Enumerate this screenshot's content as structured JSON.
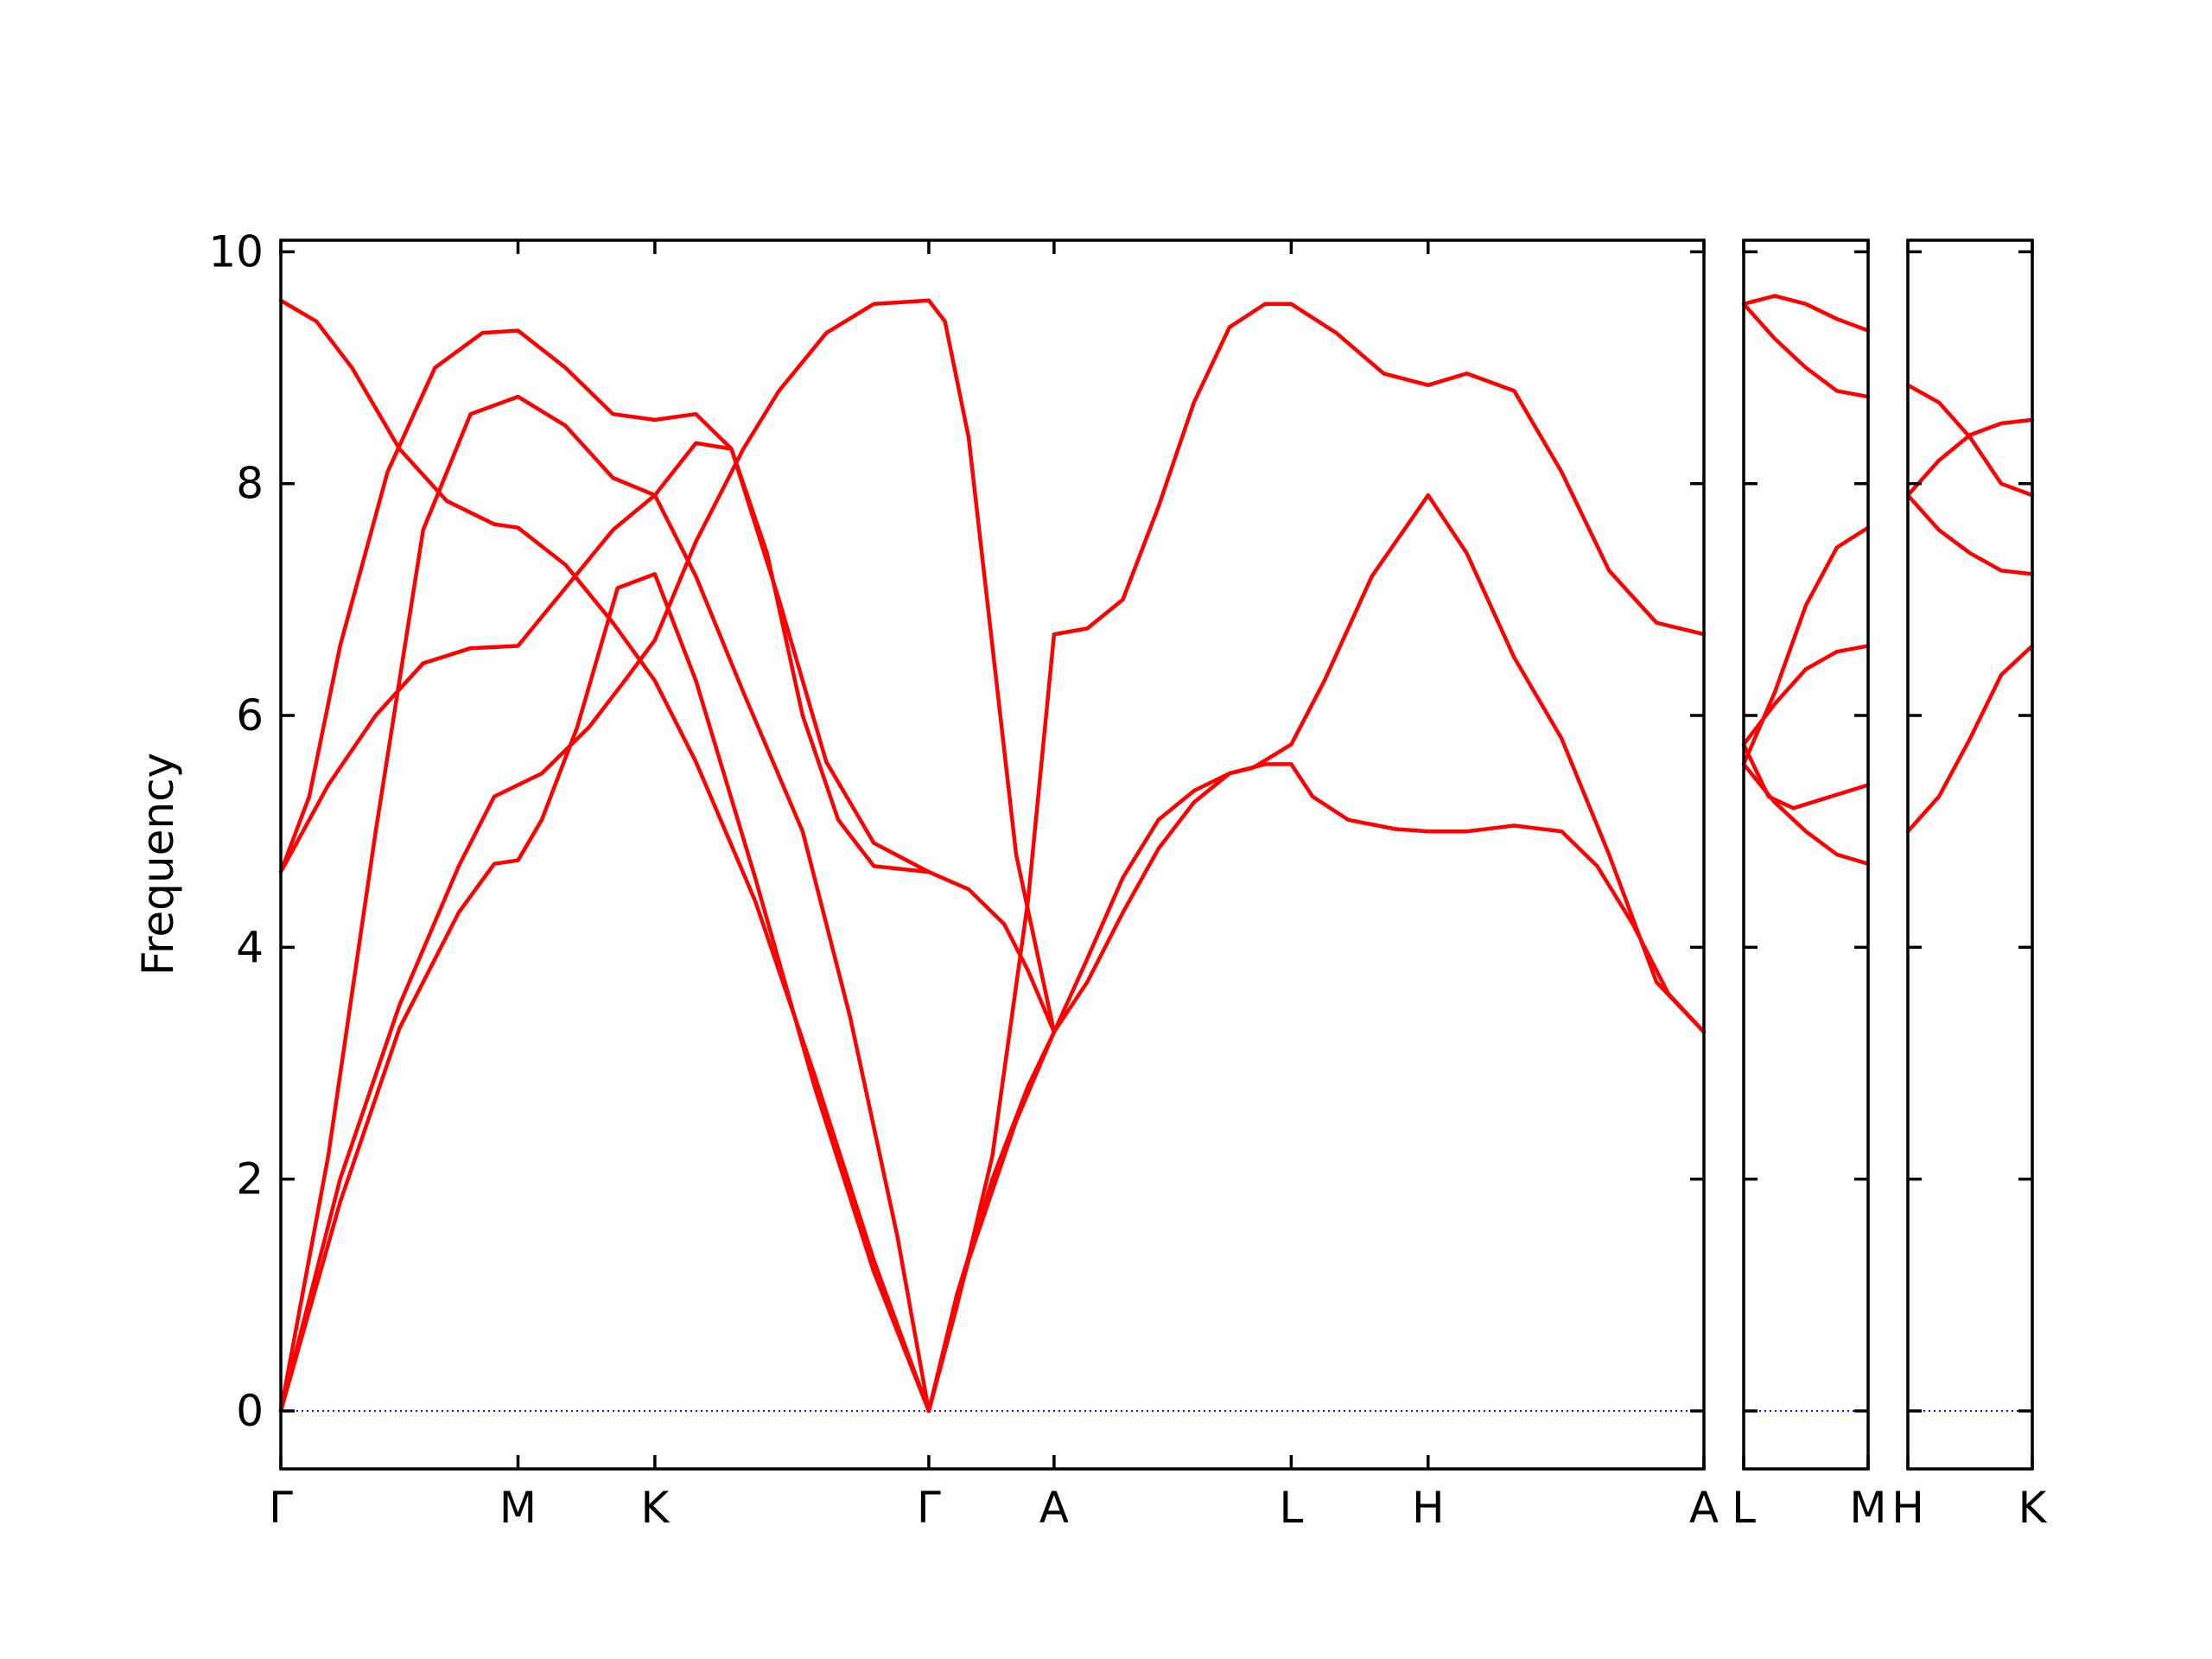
{
  "chart_data": {
    "type": "line",
    "title": "",
    "xlabel": "",
    "ylabel": "Frequency",
    "ylim": [
      -0.5,
      10.1
    ],
    "yticks": [
      0,
      2,
      4,
      6,
      8,
      10
    ],
    "grid": false,
    "colors": {
      "bands": "#ff0000",
      "zero_line": "#0000ff",
      "frame": "#000000"
    },
    "panels": [
      {
        "labels": [
          "Γ",
          "M",
          "K",
          "Γ",
          "A",
          "L",
          "H",
          "A"
        ],
        "x": [
          0,
          1.0,
          1.577,
          2.732,
          3.26,
          4.26,
          4.837,
          6.0
        ],
        "series": [
          {
            "values": [
              [
                0,
                0
              ],
              [
                0.25,
                1.8
              ],
              [
                0.5,
                3.3
              ],
              [
                0.75,
                4.3
              ],
              [
                0.9,
                4.72
              ],
              [
                1.0,
                4.75
              ],
              [
                1.1,
                5.1
              ],
              [
                1.25,
                5.9
              ],
              [
                1.42,
                7.1
              ],
              [
                1.577,
                7.22
              ],
              [
                1.75,
                6.3
              ],
              [
                2.0,
                4.6
              ],
              [
                2.25,
                2.8
              ],
              [
                2.5,
                1.2
              ],
              [
                2.732,
                0
              ]
            ]
          },
          {
            "values": [
              [
                0,
                0
              ],
              [
                0.25,
                2.0
              ],
              [
                0.5,
                3.5
              ],
              [
                0.75,
                4.7
              ],
              [
                0.9,
                5.3
              ],
              [
                1.0,
                5.4
              ],
              [
                1.1,
                5.5
              ],
              [
                1.3,
                5.9
              ],
              [
                1.45,
                6.3
              ],
              [
                1.577,
                6.65
              ],
              [
                1.75,
                7.5
              ],
              [
                1.95,
                8.3
              ],
              [
                2.1,
                8.8
              ],
              [
                2.3,
                9.3
              ],
              [
                2.5,
                9.55
              ],
              [
                2.732,
                9.58
              ]
            ]
          },
          {
            "values": [
              [
                0,
                0
              ],
              [
                0.2,
                2.2
              ],
              [
                0.4,
                5.0
              ],
              [
                0.6,
                7.6
              ],
              [
                0.8,
                8.6
              ],
              [
                1.0,
                8.75
              ],
              [
                1.2,
                8.5
              ],
              [
                1.4,
                8.05
              ],
              [
                1.577,
                7.9
              ],
              [
                1.75,
                7.2
              ],
              [
                1.95,
                6.2
              ],
              [
                2.2,
                5.0
              ],
              [
                2.4,
                3.4
              ],
              [
                2.6,
                1.5
              ],
              [
                2.732,
                0
              ]
            ]
          },
          {
            "values": [
              [
                0,
                4.65
              ],
              [
                0.2,
                5.4
              ],
              [
                0.4,
                6.0
              ],
              [
                0.6,
                6.45
              ],
              [
                0.8,
                6.58
              ],
              [
                1.0,
                6.6
              ],
              [
                1.2,
                7.1
              ],
              [
                1.4,
                7.6
              ],
              [
                1.577,
                7.9
              ],
              [
                1.75,
                8.35
              ],
              [
                1.9,
                8.3
              ],
              [
                2.05,
                7.4
              ],
              [
                2.2,
                6.0
              ],
              [
                2.35,
                5.1
              ],
              [
                2.5,
                4.7
              ],
              [
                2.732,
                4.65
              ]
            ]
          },
          {
            "values": [
              [
                0,
                4.65
              ],
              [
                0.12,
                5.3
              ],
              [
                0.25,
                6.6
              ],
              [
                0.45,
                8.1
              ],
              [
                0.65,
                9.0
              ],
              [
                0.85,
                9.3
              ],
              [
                1.0,
                9.32
              ],
              [
                1.2,
                9.0
              ],
              [
                1.4,
                8.6
              ],
              [
                1.577,
                8.55
              ],
              [
                1.75,
                8.6
              ],
              [
                1.9,
                8.3
              ],
              [
                2.1,
                7.0
              ],
              [
                2.3,
                5.6
              ],
              [
                2.5,
                4.9
              ],
              [
                2.732,
                4.65
              ]
            ]
          },
          {
            "values": [
              [
                0,
                9.58
              ],
              [
                0.15,
                9.4
              ],
              [
                0.3,
                9.0
              ],
              [
                0.5,
                8.3
              ],
              [
                0.7,
                7.85
              ],
              [
                0.9,
                7.65
              ],
              [
                1.0,
                7.62
              ],
              [
                1.2,
                7.3
              ],
              [
                1.4,
                6.8
              ],
              [
                1.577,
                6.3
              ],
              [
                1.75,
                5.6
              ],
              [
                2.0,
                4.4
              ],
              [
                2.25,
                2.9
              ],
              [
                2.5,
                1.3
              ],
              [
                2.732,
                0
              ]
            ]
          },
          {
            "values": [
              [
                2.732,
                0
              ],
              [
                2.85,
                1.0
              ],
              [
                3.0,
                2.0
              ],
              [
                3.15,
                2.8
              ],
              [
                3.26,
                3.27
              ],
              [
                3.4,
                3.9
              ],
              [
                3.55,
                4.6
              ],
              [
                3.7,
                5.1
              ],
              [
                3.85,
                5.35
              ],
              [
                4.0,
                5.5
              ],
              [
                4.1,
                5.55
              ],
              [
                4.26,
                5.75
              ],
              [
                4.4,
                6.3
              ],
              [
                4.6,
                7.2
              ],
              [
                4.837,
                7.9
              ],
              [
                5.0,
                7.4
              ],
              [
                5.2,
                6.5
              ],
              [
                5.4,
                5.8
              ],
              [
                5.6,
                4.8
              ],
              [
                5.8,
                3.7
              ],
              [
                6.0,
                3.27
              ]
            ]
          },
          {
            "values": [
              [
                2.732,
                0
              ],
              [
                2.9,
                1.3
              ],
              [
                3.1,
                2.5
              ],
              [
                3.26,
                3.27
              ],
              [
                3.4,
                3.7
              ],
              [
                3.55,
                4.3
              ],
              [
                3.7,
                4.85
              ],
              [
                3.85,
                5.25
              ],
              [
                4.0,
                5.5
              ],
              [
                4.15,
                5.58
              ],
              [
                4.26,
                5.58
              ],
              [
                4.35,
                5.3
              ],
              [
                4.5,
                5.1
              ],
              [
                4.7,
                5.02
              ],
              [
                4.837,
                5.0
              ],
              [
                5.0,
                5.0
              ],
              [
                5.2,
                5.05
              ],
              [
                5.4,
                5.0
              ],
              [
                5.55,
                4.7
              ],
              [
                5.7,
                4.2
              ],
              [
                5.85,
                3.6
              ],
              [
                6.0,
                3.27
              ]
            ]
          },
          {
            "values": [
              [
                2.732,
                0
              ],
              [
                2.85,
                0.9
              ],
              [
                3.0,
                2.2
              ],
              [
                3.15,
                4.4
              ],
              [
                3.26,
                6.7
              ],
              [
                3.4,
                6.75
              ],
              [
                3.55,
                7.0
              ],
              [
                3.7,
                7.8
              ],
              [
                3.85,
                8.7
              ],
              [
                4.0,
                9.35
              ],
              [
                4.15,
                9.55
              ],
              [
                4.26,
                9.55
              ],
              [
                4.45,
                9.3
              ],
              [
                4.65,
                8.95
              ],
              [
                4.837,
                8.85
              ],
              [
                5.0,
                8.95
              ],
              [
                5.2,
                8.8
              ],
              [
                5.4,
                8.1
              ],
              [
                5.6,
                7.25
              ],
              [
                5.8,
                6.8
              ],
              [
                6.0,
                6.7
              ]
            ]
          },
          {
            "values": [
              [
                2.732,
                4.65
              ],
              [
                2.9,
                4.5
              ],
              [
                3.05,
                4.2
              ],
              [
                3.15,
                3.8
              ],
              [
                3.26,
                3.27
              ],
              [
                3.1,
                4.8
              ],
              [
                3.0,
                6.6
              ],
              [
                2.9,
                8.4
              ],
              [
                2.8,
                9.4
              ],
              [
                2.732,
                9.58
              ]
            ]
          }
        ]
      },
      {
        "labels": [
          "L",
          "M"
        ],
        "x": [
          0,
          1
        ],
        "series": [
          {
            "values": [
              [
                0,
                9.55
              ],
              [
                0.25,
                9.62
              ],
              [
                0.5,
                9.55
              ],
              [
                0.75,
                9.42
              ],
              [
                1.0,
                9.32
              ]
            ]
          },
          {
            "values": [
              [
                0,
                9.55
              ],
              [
                0.25,
                9.25
              ],
              [
                0.5,
                9.0
              ],
              [
                0.75,
                8.8
              ],
              [
                1.0,
                8.75
              ]
            ]
          },
          {
            "values": [
              [
                0,
                5.58
              ],
              [
                0.25,
                6.2
              ],
              [
                0.5,
                6.95
              ],
              [
                0.75,
                7.45
              ],
              [
                1.0,
                7.62
              ]
            ]
          },
          {
            "values": [
              [
                0,
                5.75
              ],
              [
                0.25,
                6.1
              ],
              [
                0.5,
                6.4
              ],
              [
                0.75,
                6.55
              ],
              [
                1.0,
                6.6
              ]
            ]
          },
          {
            "values": [
              [
                0,
                5.75
              ],
              [
                0.2,
                5.3
              ],
              [
                0.4,
                5.2
              ],
              [
                0.7,
                5.3
              ],
              [
                1.0,
                5.4
              ]
            ]
          },
          {
            "values": [
              [
                0,
                5.58
              ],
              [
                0.25,
                5.25
              ],
              [
                0.5,
                5.0
              ],
              [
                0.75,
                4.8
              ],
              [
                1.0,
                4.72
              ]
            ]
          }
        ]
      },
      {
        "labels": [
          "H",
          "K"
        ],
        "x": [
          0,
          1
        ],
        "series": [
          {
            "values": [
              [
                0,
                8.85
              ],
              [
                0.25,
                8.7
              ],
              [
                0.5,
                8.4
              ],
              [
                0.75,
                8.0
              ],
              [
                1.0,
                7.9
              ]
            ]
          },
          {
            "values": [
              [
                0,
                7.9
              ],
              [
                0.25,
                8.2
              ],
              [
                0.5,
                8.42
              ],
              [
                0.75,
                8.52
              ],
              [
                1.0,
                8.55
              ]
            ]
          },
          {
            "values": [
              [
                0,
                7.9
              ],
              [
                0.25,
                7.6
              ],
              [
                0.5,
                7.4
              ],
              [
                0.75,
                7.25
              ],
              [
                1.0,
                7.22
              ]
            ]
          },
          {
            "values": [
              [
                0,
                5.0
              ],
              [
                0.25,
                5.3
              ],
              [
                0.5,
                5.8
              ],
              [
                0.75,
                6.35
              ],
              [
                1.0,
                6.6
              ]
            ]
          }
        ]
      }
    ]
  }
}
